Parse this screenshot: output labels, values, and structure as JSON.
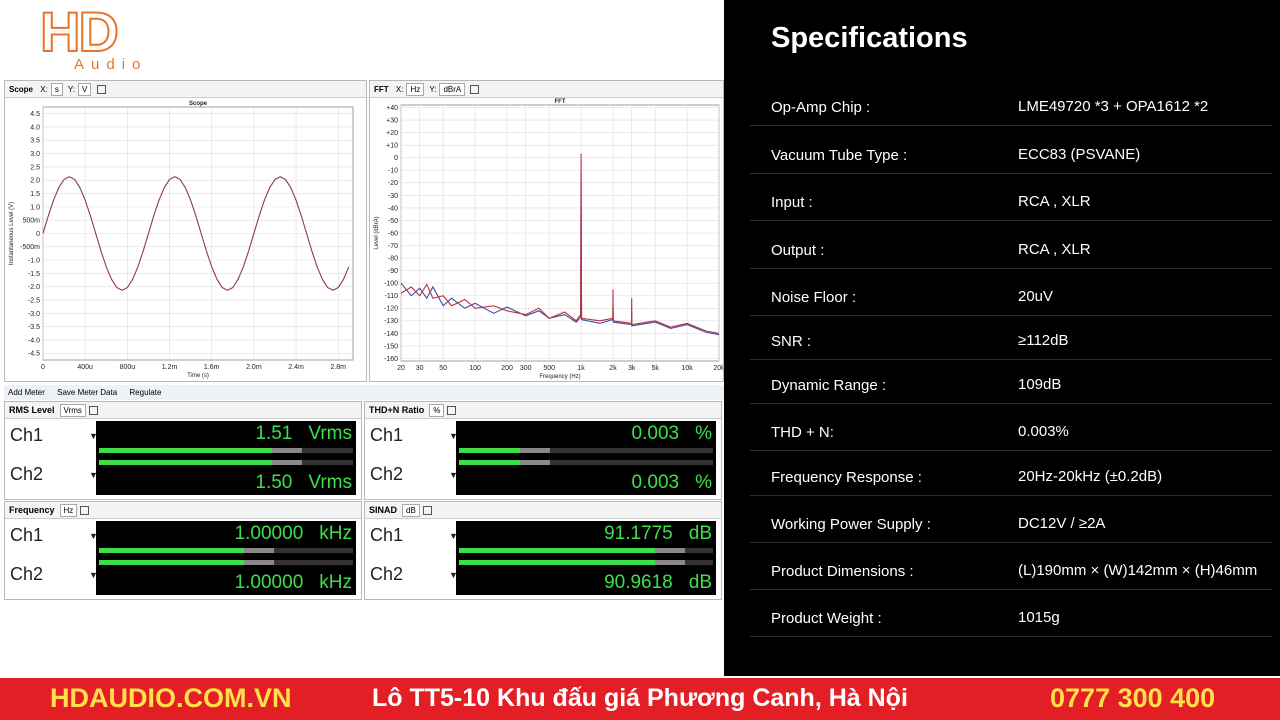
{
  "logo": {
    "mark": "HD",
    "word": "Audio"
  },
  "chart_data": [
    {
      "type": "line",
      "title": "Scope",
      "x_label": "Time (s)",
      "y_label": "Instantaneous Level (V)",
      "x": [
        0,
        5e-05,
        0.0001,
        0.00015,
        0.0002,
        0.00025,
        0.0003,
        0.00035,
        0.0004,
        0.00045,
        0.0005,
        0.00055,
        0.0006,
        0.00065,
        0.0007,
        0.00075,
        0.0008,
        0.00085,
        0.0009,
        0.00095,
        0.001,
        0.00105,
        0.0011,
        0.00115,
        0.0012,
        0.00125,
        0.0013,
        0.00135,
        0.0014,
        0.00145,
        0.0015,
        0.00155,
        0.0016,
        0.00165,
        0.0017,
        0.00175,
        0.0018,
        0.00185,
        0.0019,
        0.00195,
        0.002,
        0.00205,
        0.0021,
        0.00215,
        0.0022,
        0.00225,
        0.0023,
        0.00235,
        0.0024,
        0.00245,
        0.0025,
        0.00255,
        0.0026,
        0.00265,
        0.0027,
        0.00275,
        0.0028,
        0.00285,
        0.0029
      ],
      "series": [
        {
          "color": "#8e3b4f",
          "values": [
            0,
            0.66,
            1.25,
            1.72,
            2.03,
            2.13,
            2.03,
            1.72,
            1.25,
            0.66,
            0,
            -0.66,
            -1.25,
            -1.72,
            -2.03,
            -2.13,
            -2.03,
            -1.72,
            -1.25,
            -0.66,
            0,
            0.66,
            1.25,
            1.72,
            2.03,
            2.13,
            2.03,
            1.72,
            1.25,
            0.66,
            0,
            -0.66,
            -1.25,
            -1.72,
            -2.03,
            -2.13,
            -2.03,
            -1.72,
            -1.25,
            -0.66,
            0,
            0.66,
            1.25,
            1.72,
            2.03,
            2.13,
            2.03,
            1.72,
            1.25,
            0.66,
            0,
            -0.66,
            -1.25,
            -1.72,
            -2.03,
            -2.13,
            -2.03,
            -1.72,
            -1.25
          ]
        }
      ],
      "xlim": [
        0,
        0.00294
      ],
      "ylim": [
        -4.75,
        4.75
      ],
      "xticks": [
        0,
        {
          "value": 0.0004,
          "label": "400u"
        },
        {
          "value": 0.0008,
          "label": "800u"
        },
        {
          "value": 0.0012,
          "label": "1.2m"
        },
        {
          "value": 0.0016,
          "label": "1.6m"
        },
        {
          "value": 0.002,
          "label": "2.0m"
        },
        {
          "value": 0.0024,
          "label": "2.4m"
        },
        {
          "value": 0.0028,
          "label": "2.8m"
        }
      ],
      "yticks": [
        4.5,
        {
          "value": 4,
          "label": "4.0"
        },
        3.5,
        {
          "value": 3,
          "label": "3.0"
        },
        2.5,
        {
          "value": 2,
          "label": "2.0"
        },
        1.5,
        {
          "value": 1,
          "label": "1.0"
        },
        {
          "value": 0.5,
          "label": "500m"
        },
        0,
        {
          "value": -0.5,
          "label": "-500m"
        },
        {
          "value": -1,
          "label": "-1.0"
        },
        -1.5,
        {
          "value": -2,
          "label": "-2.0"
        },
        -2.5,
        {
          "value": -3,
          "label": "-3.0"
        },
        -3.5,
        {
          "value": -4,
          "label": "-4.0"
        },
        -4.5
      ],
      "grid": true
    },
    {
      "type": "line",
      "title": "FFT",
      "x_label": "Frequency (Hz)",
      "y_label": "Level (dBrA)",
      "xscale": "log",
      "x": [
        20,
        25,
        30,
        35,
        40,
        50,
        60,
        80,
        100,
        150,
        200,
        300,
        400,
        500,
        700,
        900,
        990,
        1000,
        1010,
        1500,
        1990,
        2000,
        2010,
        2990,
        3000,
        3010,
        5000,
        7000,
        10000,
        15000,
        20000
      ],
      "series": [
        {
          "color": "#3a4fa0",
          "values": [
            -100,
            -110,
            -104,
            -112,
            -103,
            -118,
            -112,
            -120,
            -116,
            -124,
            -119,
            -126,
            -122,
            -128,
            -125,
            -131,
            -127,
            -12,
            -129,
            -132,
            -129,
            -118,
            -131,
            -133,
            -122,
            -134,
            -131,
            -136,
            -133,
            -139,
            -141
          ]
        },
        {
          "color": "#c0303a",
          "values": [
            -108,
            -103,
            -110,
            -101,
            -112,
            -110,
            -118,
            -113,
            -120,
            -118,
            -122,
            -125,
            -120,
            -128,
            -123,
            -130,
            -125,
            3,
            -128,
            -130,
            -128,
            -105,
            -130,
            -132,
            -112,
            -133,
            -130,
            -135,
            -132,
            -138,
            -140
          ]
        }
      ],
      "xlim": [
        20,
        20000
      ],
      "ylim": [
        -162,
        42
      ],
      "xticks": [
        20,
        30,
        50,
        100,
        200,
        300,
        500,
        {
          "value": 1000,
          "label": "1k"
        },
        {
          "value": 2000,
          "label": "2k"
        },
        {
          "value": 3000,
          "label": "3k"
        },
        {
          "value": 5000,
          "label": "5k"
        },
        {
          "value": 10000,
          "label": "10k"
        },
        {
          "value": 20000,
          "label": "20k"
        }
      ],
      "yticks": [
        {
          "value": 40,
          "label": "+40"
        },
        {
          "value": 30,
          "label": "+30"
        },
        {
          "value": 20,
          "label": "+20"
        },
        {
          "value": 10,
          "label": "+10"
        },
        0,
        -10,
        -20,
        -30,
        -40,
        -50,
        -60,
        -70,
        -80,
        -90,
        -100,
        -110,
        -120,
        -130,
        -140,
        -150,
        -160
      ],
      "grid": true
    }
  ],
  "toolbars": [
    {
      "name": "Scope",
      "x_key": "X:",
      "x_unit": "s",
      "y_key": "Y:",
      "y_unit": "V"
    },
    {
      "name": "FFT",
      "x_key": "X:",
      "x_unit": "Hz",
      "y_key": "Y:",
      "y_unit": "dBrA"
    }
  ],
  "meter_toolbar": [
    "Add Meter",
    "Save Meter Data",
    "Regulate"
  ],
  "meters": [
    {
      "title": "RMS Level",
      "unit": "Vrms",
      "channels": [
        {
          "name": "Ch1",
          "value": "1.51",
          "unit": "Vrms"
        },
        {
          "name": "Ch2",
          "value": "1.50",
          "unit": "Vrms"
        }
      ]
    },
    {
      "title": "THD+N Ratio",
      "unit": "%",
      "channels": [
        {
          "name": "Ch1",
          "value": "0.003",
          "unit": "%"
        },
        {
          "name": "Ch2",
          "value": "0.003",
          "unit": "%"
        }
      ]
    },
    {
      "title": "Frequency",
      "unit": "Hz",
      "channels": [
        {
          "name": "Ch1",
          "value": "1.00000",
          "unit": "kHz"
        },
        {
          "name": "Ch2",
          "value": "1.00000",
          "unit": "kHz"
        }
      ]
    },
    {
      "title": "SINAD",
      "unit": "dB",
      "channels": [
        {
          "name": "Ch1",
          "value": "91.1775",
          "unit": "dB"
        },
        {
          "name": "Ch2",
          "value": "90.9618",
          "unit": "dB"
        }
      ]
    }
  ],
  "specs": {
    "title": "Specifications",
    "rows": [
      [
        "Op-Amp Chip :",
        "LME49720 *3 + OPA1612 *2"
      ],
      [
        "Vacuum Tube Type :",
        "ECC83 (PSVANE)"
      ],
      [
        "Input :",
        "RCA , XLR"
      ],
      [
        "Output :",
        "RCA , XLR"
      ],
      [
        "Noise Floor :",
        "20uV"
      ],
      [
        "SNR :",
        "≥112dB"
      ],
      [
        "Dynamic Range :",
        "109dB"
      ],
      [
        "THD + N:",
        "0.003%"
      ],
      [
        "Frequency Response :",
        "20Hz-20kHz (±0.2dB)"
      ],
      [
        "Working Power Supply :",
        "DC12V / ≥2A"
      ],
      [
        "Product Dimensions :",
        "(L)190mm × (W)142mm × (H)46mm"
      ],
      [
        "Product Weight :",
        "1015g"
      ]
    ]
  },
  "footer": {
    "site": "HDAUDIO.COM.VN",
    "address": "Lô TT5-10 Khu đấu giá Phương Canh, Hà Nội",
    "phone": "0777 300 400"
  }
}
